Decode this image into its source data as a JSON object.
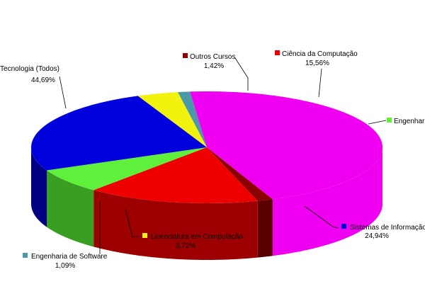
{
  "chart_data": {
    "type": "pie",
    "title": "",
    "style": "3d-exploded",
    "slices": [
      {
        "label": "Outros Cursos",
        "value": 1.42,
        "value_label": "1,42%",
        "color": "#8b0000",
        "side": "#5a0000"
      },
      {
        "label": "Ciência da Computação",
        "value": 15.56,
        "value_label": "15,56%",
        "color": "#ee0000",
        "side": "#9c0000"
      },
      {
        "label": "Engenharia",
        "value": 6.98,
        "value_label": "",
        "color": "#5ef03a",
        "side": "#3a9e22"
      },
      {
        "label": "Sistemas de Informação",
        "value": 24.94,
        "value_label": "24,94%",
        "color": "#0000dd",
        "side": "#000080"
      },
      {
        "label": "Licenciatura em Computação",
        "value": 3.72,
        "value_label": "3,72%",
        "color": "#f2f20f",
        "side": "#c8c800"
      },
      {
        "label": "Engenharia de Software",
        "value": 1.09,
        "value_label": "1,09%",
        "color": "#4a98a8",
        "side": "#2e6a78"
      },
      {
        "label": "e Tecnologia (Todos)",
        "value": 44.69,
        "value_label": "44,69%",
        "color": "#f000f0",
        "side": "#f000f0"
      }
    ]
  }
}
